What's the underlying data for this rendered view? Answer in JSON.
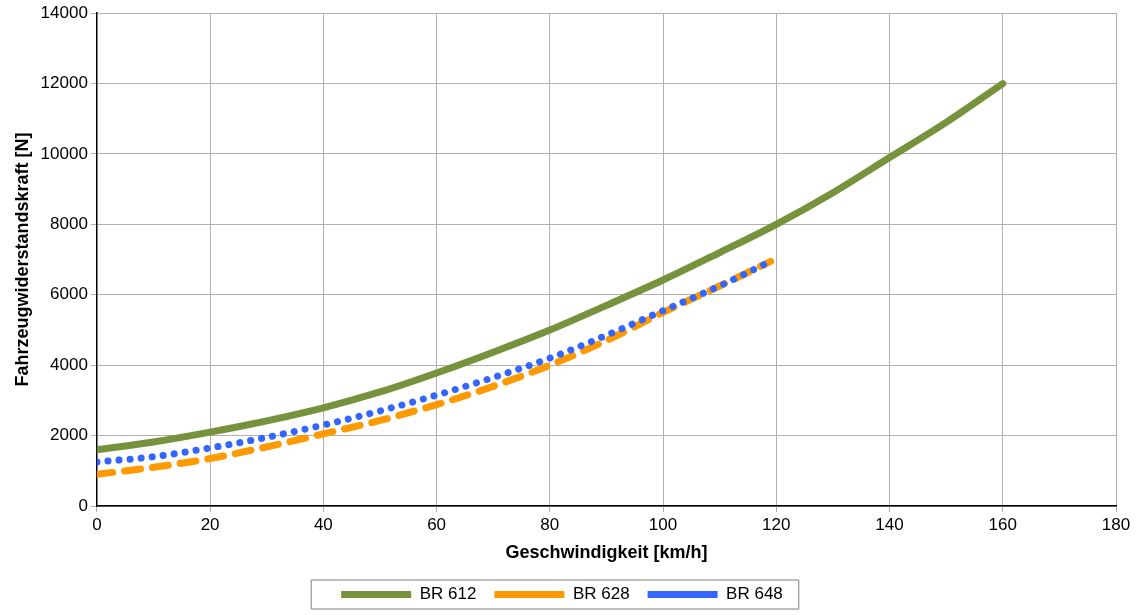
{
  "chart_data": {
    "type": "line",
    "xlabel": "Geschwindigkeit [km/h]",
    "ylabel": "Fahrzeugwiderstandskraft [N]",
    "xlim": [
      0,
      180
    ],
    "xticks": [
      0,
      20,
      40,
      60,
      80,
      100,
      120,
      140,
      160,
      180
    ],
    "ylim": [
      0,
      14000
    ],
    "yticks": [
      0,
      2000,
      4000,
      6000,
      8000,
      10000,
      12000,
      14000
    ],
    "grid": true,
    "legend": "bottom",
    "marker": "none",
    "series": [
      {
        "name": "BR 612",
        "color": "#76923c",
        "line_style": "solid",
        "x": [
          0,
          10,
          20,
          30,
          40,
          50,
          60,
          70,
          80,
          90,
          100,
          110,
          120,
          130,
          140,
          150,
          160
        ],
        "values": [
          1600,
          1820,
          2100,
          2420,
          2790,
          3240,
          3780,
          4370,
          5000,
          5700,
          6420,
          7200,
          8000,
          8900,
          9900,
          10900,
          12000
        ]
      },
      {
        "name": "BR 628",
        "color": "#ff9900",
        "line_style": "dashed",
        "x": [
          0,
          10,
          20,
          30,
          40,
          50,
          60,
          70,
          80,
          90,
          100,
          110,
          119
        ],
        "values": [
          900,
          1100,
          1350,
          1680,
          2050,
          2430,
          2880,
          3400,
          4000,
          4700,
          5500,
          6250,
          6950
        ]
      },
      {
        "name": "BR 648",
        "color": "#3366ff",
        "line_style": "dotted",
        "x": [
          0,
          10,
          20,
          30,
          40,
          50,
          60,
          70,
          80,
          90,
          100,
          110,
          119
        ],
        "values": [
          1250,
          1400,
          1650,
          1950,
          2300,
          2700,
          3150,
          3650,
          4200,
          4850,
          5550,
          6250,
          6950
        ]
      }
    ]
  }
}
